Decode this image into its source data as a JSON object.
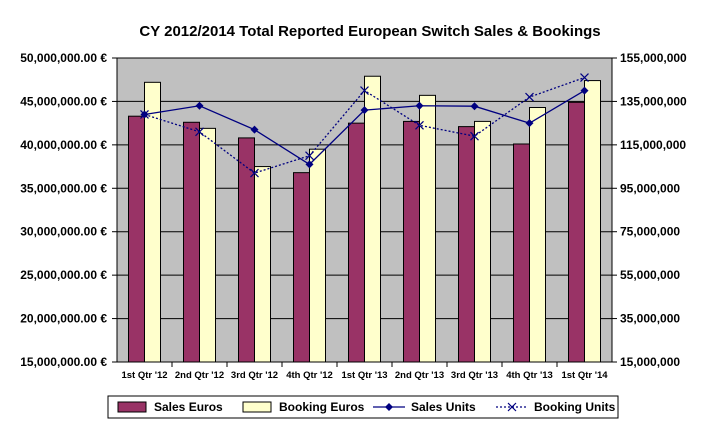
{
  "chart_data": {
    "type": "bar",
    "title": "CY 2012/2014   Total Reported European Switch Sales & Bookings",
    "categories": [
      "1st Qtr '12",
      "2nd Qtr '12",
      "3rd Qtr '12",
      "4th Qtr '12",
      "1st Qtr '13",
      "2nd Qtr '13",
      "3rd Qtr '13",
      "4th Qtr '13",
      "1st Qtr '14"
    ],
    "series": [
      {
        "name": "Sales Euros",
        "kind": "bar",
        "axis": "left",
        "color": "#993366",
        "values": [
          43300000,
          42600000,
          40800000,
          36800000,
          42500000,
          42700000,
          42100000,
          40100000,
          44900000
        ]
      },
      {
        "name": "Booking Euros",
        "kind": "bar",
        "axis": "left",
        "color": "#ffffcc",
        "values": [
          47200000,
          41900000,
          37500000,
          39500000,
          47900000,
          45700000,
          42700000,
          44300000,
          47400000
        ]
      },
      {
        "name": "Sales Units",
        "kind": "line",
        "axis": "right",
        "color": "#000080",
        "marker": "diamond",
        "dash": "solid",
        "values": [
          129000000,
          133000000,
          122000000,
          106000000,
          131000000,
          133000000,
          132800000,
          125000000,
          140000000
        ]
      },
      {
        "name": "Booking Units",
        "kind": "line",
        "axis": "right",
        "color": "#000080",
        "marker": "x",
        "dash": "dotted",
        "values": [
          129000000,
          121000000,
          102000000,
          110000000,
          140000000,
          124000000,
          119000000,
          137000000,
          146000000
        ]
      }
    ],
    "left_axis": {
      "min": 15000000,
      "max": 50000000,
      "step": 5000000,
      "tick_labels": [
        "15,000,000.00 €",
        "20,000,000.00 €",
        "25,000,000.00 €",
        "30,000,000.00 €",
        "35,000,000.00 €",
        "40,000,000.00 €",
        "45,000,000.00 €",
        "50,000,000.00 €"
      ]
    },
    "right_axis": {
      "min": 15000000,
      "max": 155000000,
      "step": 20000000,
      "tick_labels": [
        "15,000,000",
        "35,000,000",
        "55,000,000",
        "75,000,000",
        "95,000,000",
        "115,000,000",
        "135,000,000",
        "155,000,000"
      ]
    },
    "plot_background": "#c0c0c0",
    "grid": true,
    "legend_position": "bottom"
  }
}
